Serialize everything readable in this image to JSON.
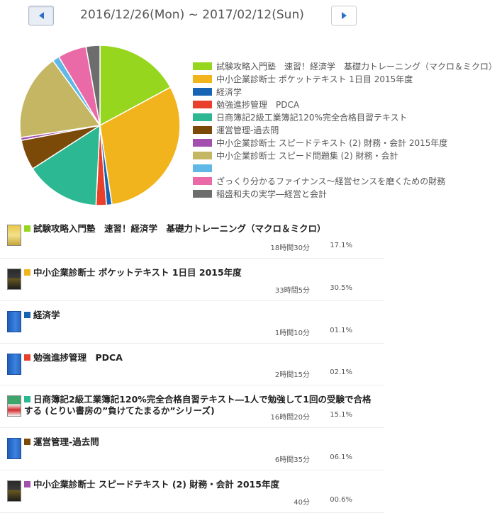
{
  "header": {
    "date_range": "2016/12/26(Mon) ~ 2017/02/12(Sun)"
  },
  "legend": [
    {
      "label": "試験攻略入門塾　速習！経済学　基礎力トレーニング（マクロ＆ミクロ）",
      "color": "#96d61e"
    },
    {
      "label": "中小企業診断士 ポケットテキスト 1日目 2015年度",
      "color": "#f2b41c"
    },
    {
      "label": "経済学",
      "color": "#1764b4"
    },
    {
      "label": "勉強進捗管理　PDCA",
      "color": "#e8402a"
    },
    {
      "label": "日商簿記2級工業簿記120%完全合格目習テキスト",
      "color": "#2cb893"
    },
    {
      "label": "運営管理-過去問",
      "color": "#7c4a08"
    },
    {
      "label": "中小企業診断士 スピードテキスト (2) 財務・会計 2015年度",
      "color": "#a24fad"
    },
    {
      "label": "中小企業診断士 スピード問題集 (2) 財務・会計",
      "color": "#c4b662"
    },
    {
      "label": "",
      "color": "#5fb8e6"
    },
    {
      "label": "ざっくり分かるファイナンス〜経営センスを磨くための財務",
      "color": "#ea6aa8"
    },
    {
      "label": "稲盛和夫の実学―経営と会計",
      "color": "#6d6d6d"
    }
  ],
  "chart_data": {
    "type": "pie",
    "slices": [
      {
        "value": 17.1,
        "color": "#96d61e"
      },
      {
        "value": 30.5,
        "color": "#f2b41c"
      },
      {
        "value": 1.1,
        "color": "#1764b4"
      },
      {
        "value": 2.1,
        "color": "#e8402a"
      },
      {
        "value": 15.1,
        "color": "#2cb893"
      },
      {
        "value": 6.1,
        "color": "#7c4a08"
      },
      {
        "value": 0.6,
        "color": "#a24fad"
      },
      {
        "value": 17.4,
        "color": "#c4b662"
      },
      {
        "value": 1.4,
        "color": "#5fb8e6"
      },
      {
        "value": 5.8,
        "color": "#ea6aa8"
      },
      {
        "value": 2.8,
        "color": "#6d6d6d"
      }
    ]
  },
  "items": [
    {
      "title": "試験攻略入門塾　速習！経済学　基礎力トレーニング（マクロ＆ミクロ）",
      "time": "18時間30分",
      "percent": "17.1%",
      "color": "#96d61e",
      "thumb": "yellow",
      "height": 62
    },
    {
      "title": "中小企業診断士 ポケットテキスト 1日目 2015年度",
      "time": "33時間5分",
      "percent": "30.5%",
      "color": "#f2b41c",
      "thumb": "dark",
      "height": 60
    },
    {
      "title": "経済学",
      "time": "1時間10分",
      "percent": "01.1%",
      "color": "#1764b4",
      "thumb": "blue",
      "height": 60
    },
    {
      "title": "勉強進捗管理　PDCA",
      "time": "2時間15分",
      "percent": "02.1%",
      "color": "#e8402a",
      "thumb": "blue",
      "height": 59
    },
    {
      "title": "日商簿記2級工業簿記120%完全合格自習テキスト―1人で勉強して1回の受験で合格する (とりい書房の”負けてたまるか”シリーズ)",
      "time": "16時間20分",
      "percent": "15.1%",
      "color": "#2cb893",
      "thumb": "green",
      "height": 60
    },
    {
      "title": "運営管理-過去問",
      "time": "6時間35分",
      "percent": "06.1%",
      "color": "#7c4a08",
      "thumb": "blue",
      "height": 60
    },
    {
      "title": "中小企業診断士 スピードテキスト (2) 財務・会計 2015年度",
      "time": "40分",
      "percent": "00.6%",
      "color": "#a24fad",
      "thumb": "dark",
      "height": 60
    }
  ]
}
